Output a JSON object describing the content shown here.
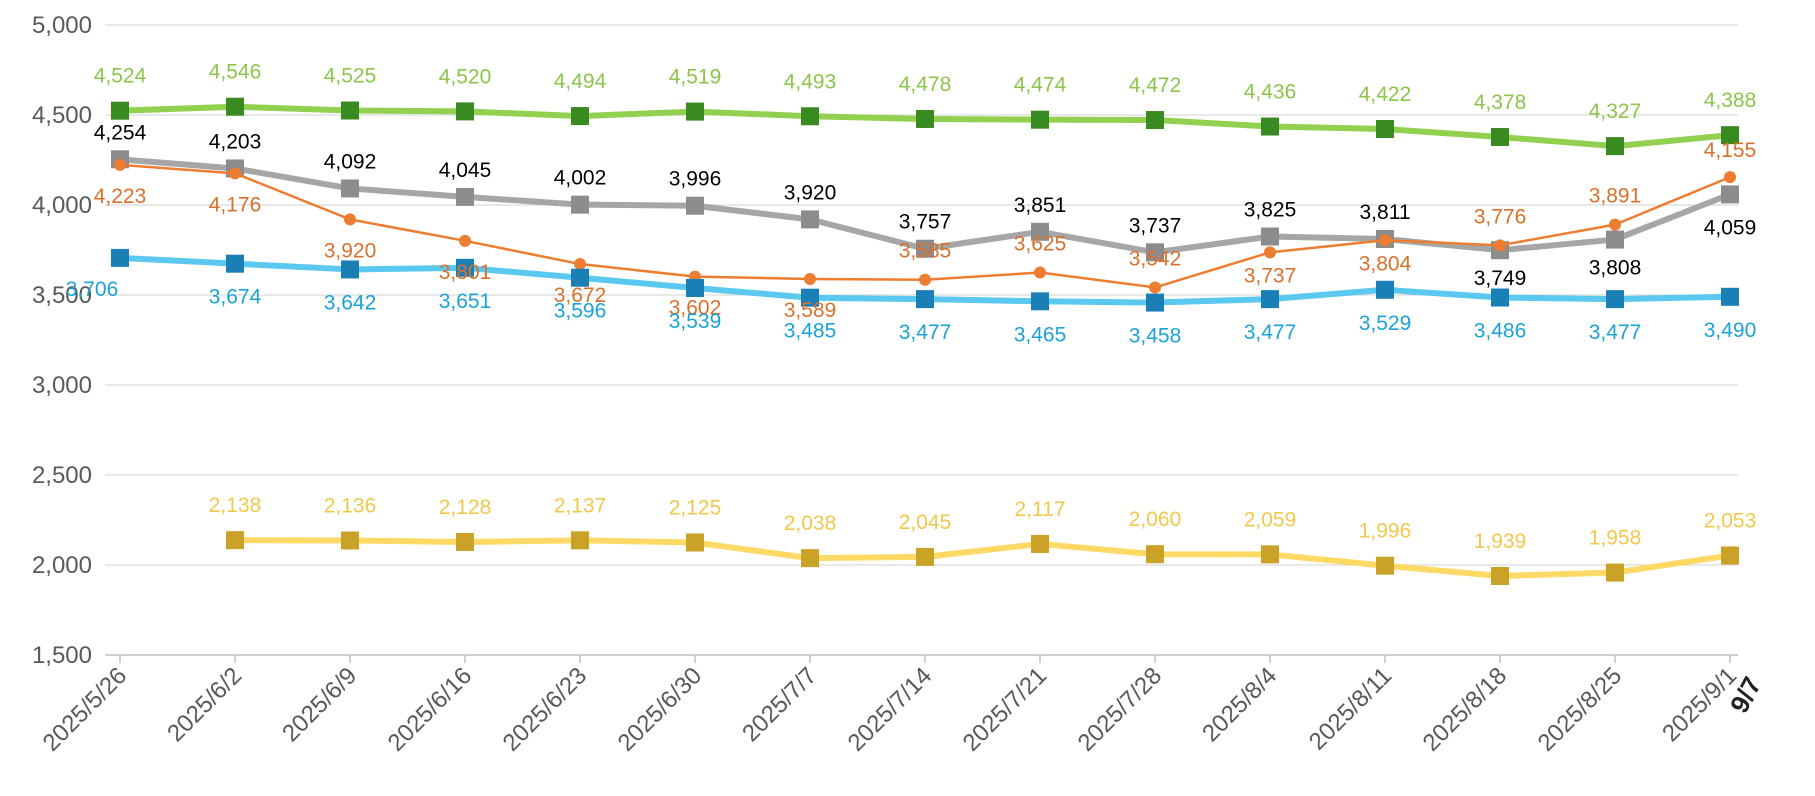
{
  "chart_data": {
    "type": "line",
    "title": "",
    "xlabel": "",
    "ylabel": "",
    "ylim": [
      1500,
      5000
    ],
    "y_ticks": [
      "1,500",
      "2,000",
      "2,500",
      "3,000",
      "3,500",
      "4,000",
      "4,500",
      "5,000"
    ],
    "y_tick_values": [
      1500,
      2000,
      2500,
      3000,
      3500,
      4000,
      4500,
      5000
    ],
    "grid": true,
    "legend": "none",
    "categories": [
      "2025/5/26",
      "2025/6/2",
      "2025/6/9",
      "2025/6/16",
      "2025/6/23",
      "2025/6/30",
      "2025/7/7",
      "2025/7/14",
      "2025/7/21",
      "2025/7/28",
      "2025/8/4",
      "2025/8/11",
      "2025/8/18",
      "2025/8/25",
      "2025/9/1"
    ],
    "annotation": "9/7",
    "series": [
      {
        "key": "green",
        "line_color": "#92d050",
        "marker_color": "#3a8a22",
        "label_color": "#8cc54b",
        "marker": "square",
        "line_width": 6,
        "values": [
          4524,
          4546,
          4525,
          4520,
          4494,
          4519,
          4493,
          4478,
          4474,
          4472,
          4436,
          4422,
          4378,
          4327,
          4388
        ],
        "labels": [
          "4,524",
          "4,546",
          "4,525",
          "4,520",
          "4,494",
          "4,519",
          "4,493",
          "4,478",
          "4,474",
          "4,472",
          "4,436",
          "4,422",
          "4,378",
          "4,327",
          "4,388"
        ]
      },
      {
        "key": "gray",
        "line_color": "#a6a6a6",
        "marker_color": "#8c8c8c",
        "label_color": "#000000",
        "marker": "square",
        "line_width": 6,
        "values": [
          4254,
          4203,
          4092,
          4045,
          4002,
          3996,
          3920,
          3757,
          3851,
          3737,
          3825,
          3811,
          3749,
          3808,
          4059
        ],
        "labels": [
          "4,254",
          "4,203",
          "4,092",
          "4,045",
          "4,002",
          "3,996",
          "3,920",
          "3,757",
          "3,851",
          "3,737",
          "3,825",
          "3,811",
          "3,749",
          "3,808",
          "4,059"
        ]
      },
      {
        "key": "orange",
        "line_color": "#ed7d31",
        "marker_color": "#ed7d31",
        "label_color": "#d9702b",
        "marker": "circle",
        "line_width": 2.5,
        "values": [
          4223,
          4176,
          3920,
          3801,
          3672,
          3602,
          3589,
          3585,
          3625,
          3542,
          3737,
          3804,
          3776,
          3891,
          4155
        ],
        "labels": [
          "4,223",
          "4,176",
          "3,920",
          "3,801",
          "3,672",
          "3,602",
          "3,589",
          "3,585",
          "3,625",
          "3,542",
          "3,737",
          "3,804",
          "3,776",
          "3,891",
          "4,155"
        ]
      },
      {
        "key": "blue",
        "line_color": "#5bc8f0",
        "marker_color": "#1a7fb5",
        "label_color": "#1aa3d6",
        "marker": "square",
        "line_width": 6,
        "values": [
          3706,
          3674,
          3642,
          3651,
          3596,
          3539,
          3485,
          3477,
          3465,
          3458,
          3477,
          3529,
          3486,
          3477,
          3490
        ],
        "labels": [
          "3,706",
          "3,674",
          "3,642",
          "3,651",
          "3,596",
          "3,539",
          "3,485",
          "3,477",
          "3,465",
          "3,458",
          "3,477",
          "3,529",
          "3,486",
          "3,477",
          "3,490"
        ]
      },
      {
        "key": "yellow",
        "line_color": "#ffd966",
        "marker_color": "#c9a227",
        "label_color": "#f2c84b",
        "marker": "square",
        "line_width": 6,
        "values": [
          null,
          2138,
          2136,
          2128,
          2137,
          2125,
          2038,
          2045,
          2117,
          2060,
          2059,
          1996,
          1939,
          1958,
          2053
        ],
        "labels": [
          null,
          "2,138",
          "2,136",
          "2,128",
          "2,137",
          "2,125",
          "2,038",
          "2,045",
          "2,117",
          "2,060",
          "2,059",
          "1,996",
          "1,939",
          "1,958",
          "2,053"
        ]
      }
    ]
  }
}
